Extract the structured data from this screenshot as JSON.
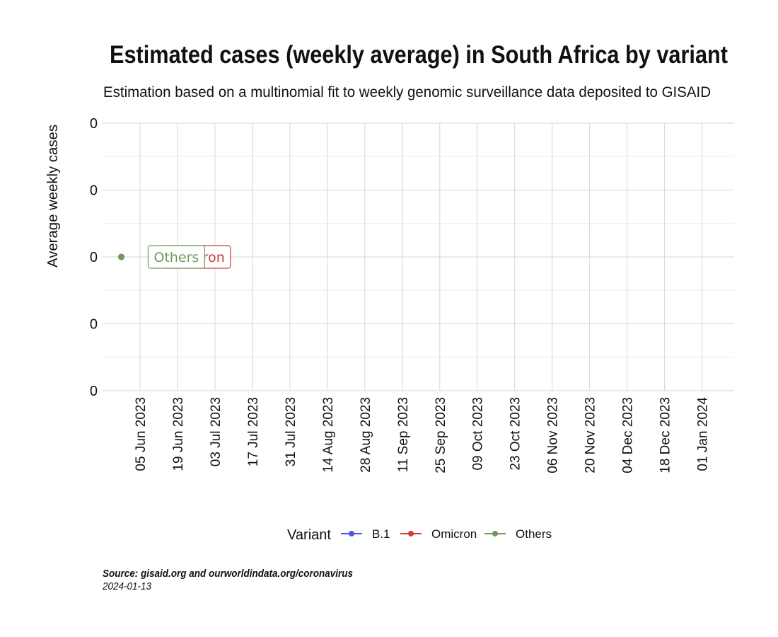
{
  "chart_data": {
    "type": "line",
    "title": "Estimated cases (weekly average) in South Africa by variant",
    "subtitle": "Estimation based on a multinomial fit to weekly genomic surveillance data deposited to GISAID",
    "ylabel": "Average weekly cases",
    "xlabel": "",
    "x_ticks": [
      "05 Jun 2023",
      "19 Jun 2023",
      "03 Jul 2023",
      "17 Jul 2023",
      "31 Jul 2023",
      "14 Aug 2023",
      "28 Aug 2023",
      "11 Sep 2023",
      "25 Sep 2023",
      "09 Oct 2023",
      "23 Oct 2023",
      "06 Nov 2023",
      "20 Nov 2023",
      "04 Dec 2023",
      "18 Dec 2023",
      "01 Jan 2024"
    ],
    "xlim": [
      "2023-05-22",
      "2024-01-13"
    ],
    "y_ticks": [
      {
        "label": "0",
        "value": 0.0
      },
      {
        "label": "0",
        "value": 0.025
      },
      {
        "label": "0",
        "value": 0.05
      },
      {
        "label": "0",
        "value": 0.075
      },
      {
        "label": "0",
        "value": 0.1
      }
    ],
    "ylim": [
      0,
      0.1
    ],
    "grid": true,
    "legend": {
      "title": "Variant",
      "position": "bottom",
      "entries": [
        {
          "label": "B.1",
          "color": "#4f56e0"
        },
        {
          "label": "Omicron",
          "color": "#c8403a"
        },
        {
          "label": "Others",
          "color": "#6f9a5a"
        }
      ]
    },
    "series": [
      {
        "name": "Omicron",
        "color": "#c8403a",
        "x": [
          "2023-05-29"
        ],
        "y": [
          0.05
        ],
        "end_label": "Omicron"
      },
      {
        "name": "Others",
        "color": "#6f9a5a",
        "x": [
          "2023-05-29"
        ],
        "y": [
          0.05
        ],
        "end_label": "Others"
      }
    ]
  },
  "caption": {
    "source": "Source: gisaid.org and ourworldindata.org/coronavirus",
    "date": "2024-01-13"
  }
}
